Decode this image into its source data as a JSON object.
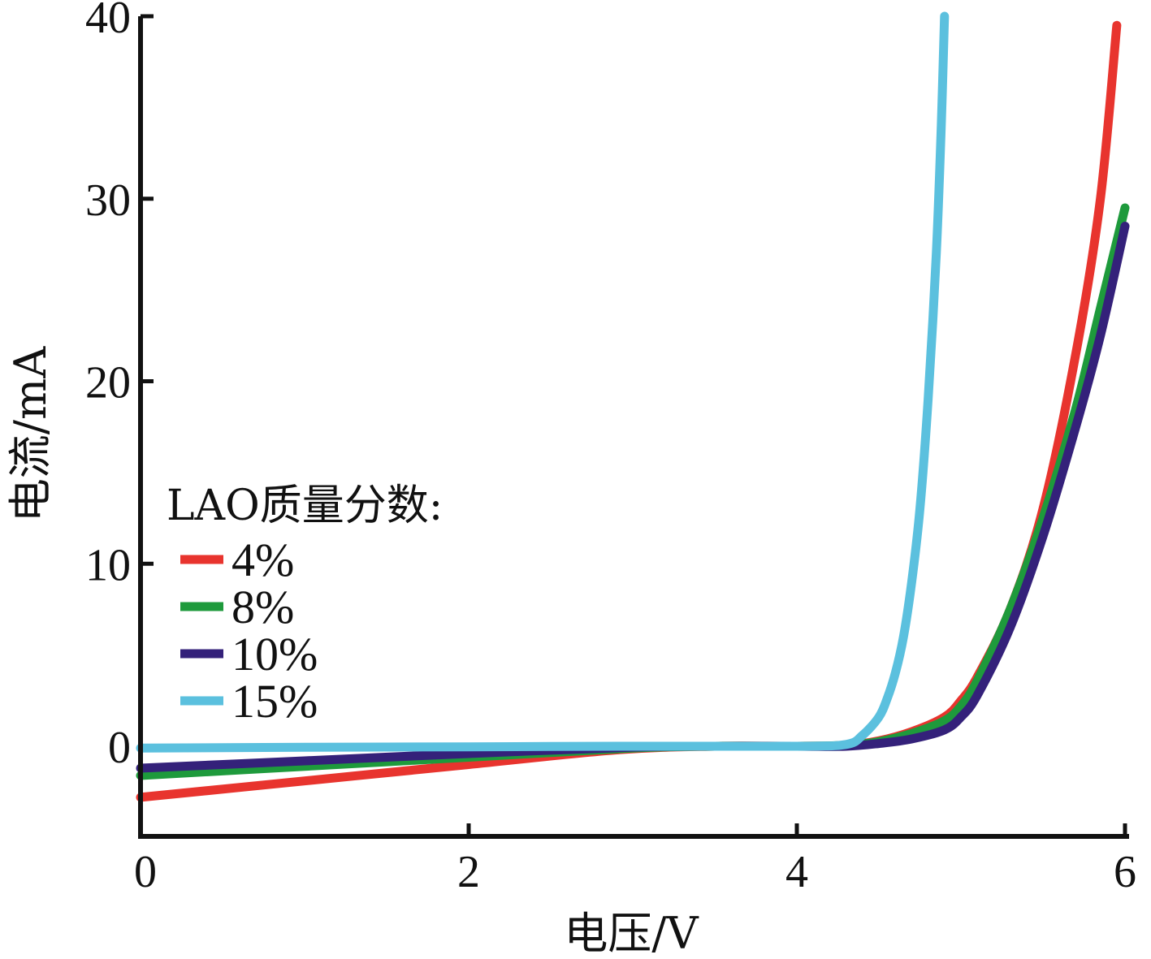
{
  "chart_data": {
    "type": "line",
    "title": "",
    "xlabel": "电压/V",
    "ylabel": "电流/mA",
    "xlim": [
      0,
      6
    ],
    "ylim": [
      -5,
      40
    ],
    "xticks": [
      0,
      2,
      4,
      6
    ],
    "xtick_labels": [
      "0",
      "2",
      "4",
      "6"
    ],
    "yticks": [
      0,
      10,
      20,
      30,
      40
    ],
    "ytick_labels": [
      "0",
      "10",
      "20",
      "30",
      "40"
    ],
    "grid": false,
    "legend": {
      "title": "LAO质量分数:",
      "position": "middle-left"
    },
    "series": [
      {
        "name": "4%",
        "color": "#e8342e",
        "x": [
          0,
          1,
          2,
          2.9,
          3.5,
          4.0,
          4.3,
          4.5,
          4.7,
          4.9,
          5.0,
          5.1,
          5.3,
          5.5,
          5.7,
          5.85,
          5.95
        ],
        "y": [
          -2.8,
          -1.9,
          -1.0,
          -0.2,
          0,
          0,
          0.05,
          0.3,
          0.8,
          1.6,
          2.5,
          3.8,
          7.5,
          13.0,
          21.5,
          30.0,
          39.5
        ]
      },
      {
        "name": "8%",
        "color": "#1e9a3c",
        "x": [
          0,
          1,
          2,
          3.0,
          3.5,
          4.0,
          4.3,
          4.5,
          4.7,
          4.9,
          5.0,
          5.1,
          5.3,
          5.5,
          5.7,
          5.85,
          6.0
        ],
        "y": [
          -1.6,
          -1.1,
          -0.6,
          -0.1,
          0,
          0,
          0.05,
          0.25,
          0.7,
          1.4,
          2.2,
          3.6,
          7.5,
          12.5,
          18.5,
          24.0,
          29.5
        ]
      },
      {
        "name": "10%",
        "color": "#34217a",
        "x": [
          0,
          1,
          2,
          3.0,
          3.5,
          4.0,
          4.3,
          4.5,
          4.7,
          4.9,
          5.0,
          5.1,
          5.3,
          5.5,
          5.7,
          5.85,
          6.0
        ],
        "y": [
          -1.2,
          -0.8,
          -0.4,
          -0.05,
          0,
          0,
          0.0,
          0.15,
          0.4,
          0.9,
          1.6,
          2.8,
          6.5,
          11.5,
          17.5,
          22.5,
          28.5
        ]
      },
      {
        "name": "15%",
        "color": "#5bc0de",
        "x": [
          0,
          1,
          2,
          3,
          4.0,
          4.3,
          4.4,
          4.5,
          4.55,
          4.6,
          4.65,
          4.7,
          4.75,
          4.8,
          4.85,
          4.88,
          4.9
        ],
        "y": [
          -0.1,
          -0.06,
          -0.03,
          0,
          0,
          0.1,
          0.6,
          1.6,
          2.6,
          4.0,
          6.0,
          9.0,
          13.0,
          19.0,
          27.0,
          34.0,
          40.0
        ]
      }
    ]
  }
}
